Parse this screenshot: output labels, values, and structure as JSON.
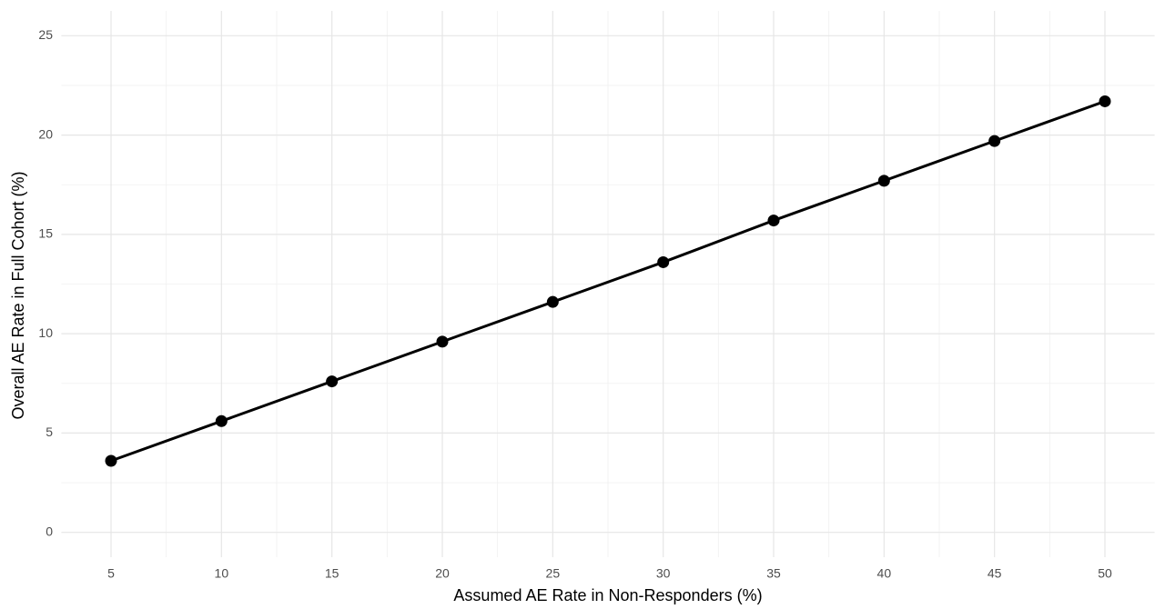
{
  "chart_data": {
    "type": "line",
    "x_label": "Assumed AE Rate in Non-Responders (%)",
    "y_label": "Overall AE Rate in Full Cohort (%)",
    "x": [
      5,
      10,
      15,
      20,
      25,
      30,
      35,
      40,
      45,
      50
    ],
    "series": [
      {
        "name": "Overall AE Rate",
        "color": "#000000",
        "values": [
          3.6,
          5.6,
          7.6,
          9.6,
          11.6,
          13.6,
          15.7,
          17.7,
          19.7,
          21.7
        ]
      }
    ],
    "xlim": [
      2.75,
      52.25
    ],
    "xticks": [
      5,
      10,
      15,
      20,
      25,
      30,
      35,
      40,
      45,
      50
    ],
    "ylim": [
      -1.25,
      26.25
    ],
    "yticks": [
      0,
      5,
      10,
      15,
      20,
      25
    ],
    "grid": true,
    "minor_grid": true,
    "markers": true
  }
}
